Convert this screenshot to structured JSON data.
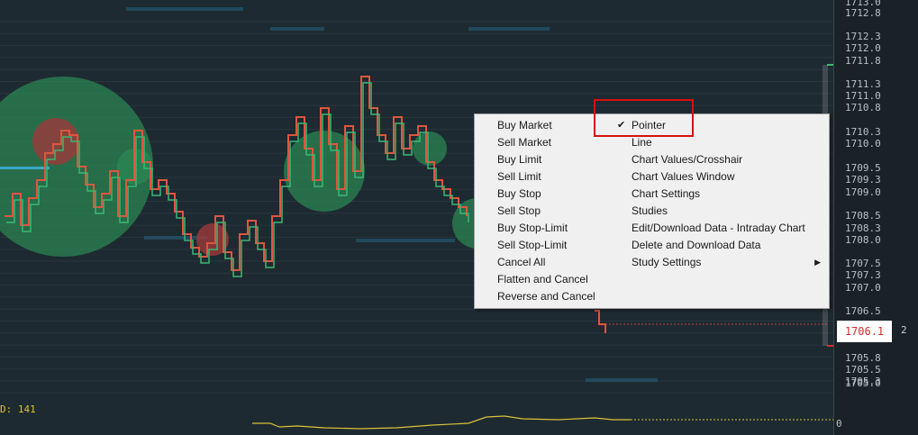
{
  "price_axis": {
    "ticks": [
      "1713.0",
      "1712.8",
      "1712.3",
      "1712.0",
      "1711.8",
      "1711.3",
      "1711.0",
      "1710.8",
      "1710.3",
      "1710.0",
      "1709.5",
      "1709.3",
      "1709.0",
      "1708.5",
      "1708.3",
      "1708.0",
      "1707.5",
      "1707.3",
      "1707.0",
      "1706.5",
      "1705.8",
      "1705.5",
      "1705.3",
      "1705.0"
    ],
    "current_price": "1706.1",
    "zero_label": "0"
  },
  "side_count": "2",
  "study_label": "D: 141",
  "colors": {
    "up_candle": "#3bb873",
    "down_candle": "#e0553d",
    "bubble_green": "#2b8a55",
    "bubble_red": "#9c3a3a",
    "study_line": "#d8c238",
    "highlight": "#d80f0f"
  },
  "context_menu": {
    "left_items": [
      "Buy Market",
      "Sell Market",
      "Buy Limit",
      "Sell Limit",
      "Buy Stop",
      "Sell Stop",
      "Buy Stop-Limit",
      "Sell Stop-Limit",
      "Cancel All",
      "Flatten and Cancel",
      "Reverse and Cancel"
    ],
    "right_items": [
      "Pointer",
      "Line",
      "Chart Values/Crosshair",
      "Chart Values Window",
      "Chart Settings",
      "Studies",
      "Edit/Download Data - Intraday Chart",
      "Delete and Download Data",
      "Study Settings"
    ],
    "checked_item": "Pointer",
    "submenu_item": "Study Settings"
  }
}
